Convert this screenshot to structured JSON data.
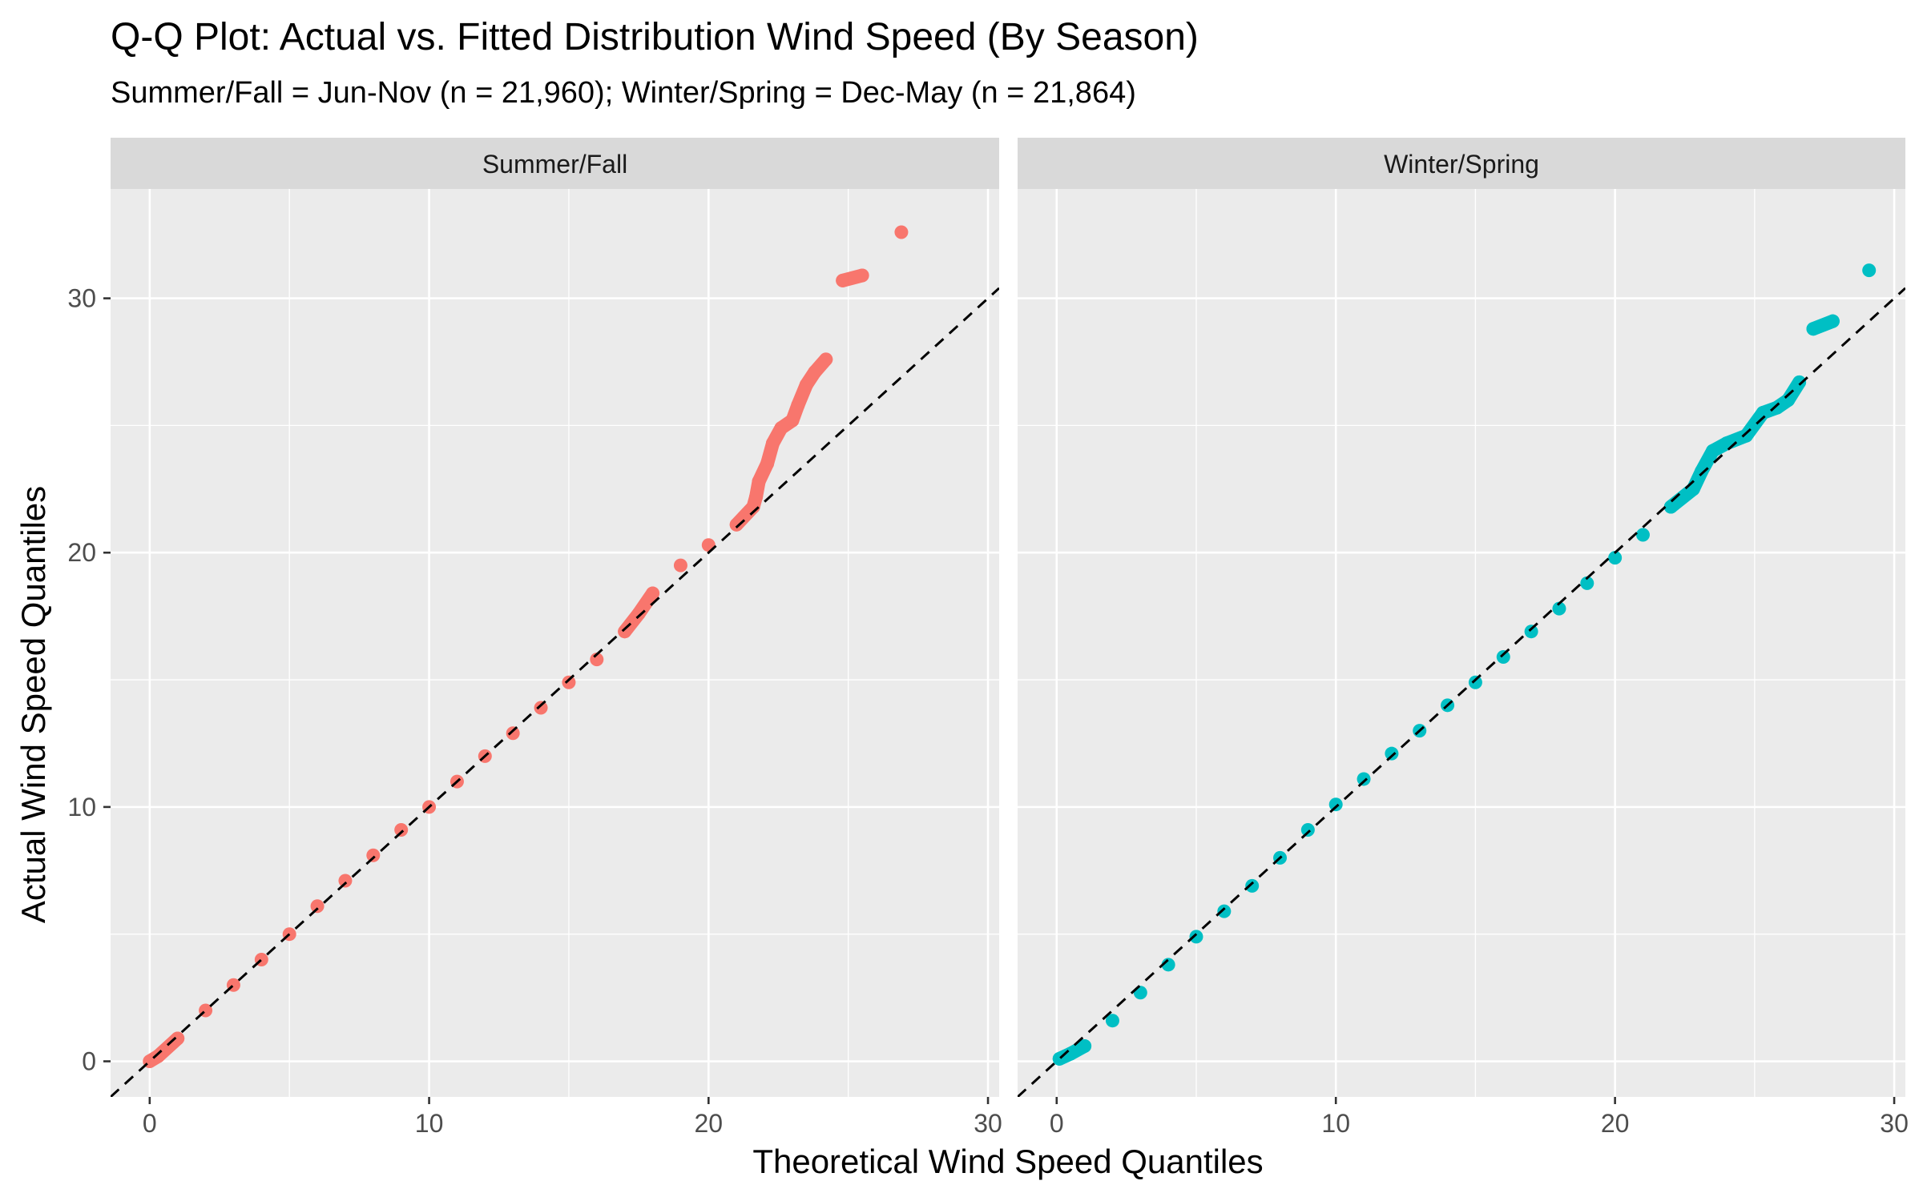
{
  "title": "Q-Q Plot: Actual vs. Fitted Distribution Wind Speed (By Season)",
  "subtitle": "Summer/Fall = Jun-Nov (n = 21,960); Winter/Spring = Dec-May (n = 21,864)",
  "chart_data": {
    "type": "scatter",
    "xlabel": "Theoretical Wind Speed Quantiles",
    "ylabel": "Actual Wind Speed Quantiles",
    "xlim": [
      -1.4,
      30.4
    ],
    "ylim": [
      -1.4,
      34.3
    ],
    "x_ticks": [
      0,
      10,
      20,
      30
    ],
    "y_ticks": [
      0,
      10,
      20,
      30
    ],
    "x_tick_labels": [
      "0",
      "10",
      "20",
      "30"
    ],
    "y_tick_labels": [
      "0",
      "10",
      "20",
      "30"
    ],
    "grid": true,
    "reference_line": {
      "slope": 1,
      "intercept": 0,
      "style": "dashed",
      "color": "#000000"
    },
    "panels": [
      {
        "name": "Summer/Fall",
        "color": "#F8766D",
        "points": [
          [
            0,
            0
          ],
          [
            0.3,
            0.2
          ],
          [
            1,
            0.9
          ],
          [
            2,
            2
          ],
          [
            3,
            3
          ],
          [
            4,
            4
          ],
          [
            5,
            5
          ],
          [
            6,
            6.1
          ],
          [
            7,
            7.1
          ],
          [
            8,
            8.1
          ],
          [
            9,
            9.1
          ],
          [
            10,
            10
          ],
          [
            11,
            11
          ],
          [
            12,
            12
          ],
          [
            13,
            12.9
          ],
          [
            14,
            13.9
          ],
          [
            15,
            14.9
          ],
          [
            16,
            15.8
          ],
          [
            17,
            16.9
          ],
          [
            17.5,
            17.6
          ],
          [
            18,
            18.4
          ],
          [
            19,
            19.5
          ],
          [
            20,
            20.3
          ],
          [
            21,
            21.1
          ],
          [
            21.6,
            21.8
          ],
          [
            21.7,
            22.2
          ],
          [
            21.8,
            22.8
          ],
          [
            22.1,
            23.5
          ],
          [
            22.3,
            24.3
          ],
          [
            22.6,
            24.9
          ],
          [
            23,
            25.2
          ],
          [
            23.2,
            25.8
          ],
          [
            23.5,
            26.6
          ],
          [
            23.8,
            27.1
          ],
          [
            24.2,
            27.6
          ],
          [
            24.8,
            30.7
          ],
          [
            25.5,
            30.9
          ],
          [
            26.9,
            32.6
          ]
        ]
      },
      {
        "name": "Winter/Spring",
        "color": "#00BFC4",
        "points": [
          [
            0.1,
            0.1
          ],
          [
            0.5,
            0.3
          ],
          [
            1,
            0.6
          ],
          [
            2,
            1.6
          ],
          [
            3,
            2.7
          ],
          [
            4,
            3.8
          ],
          [
            5,
            4.9
          ],
          [
            6,
            5.9
          ],
          [
            7,
            6.9
          ],
          [
            8,
            8
          ],
          [
            9,
            9.1
          ],
          [
            10,
            10.1
          ],
          [
            11,
            11.1
          ],
          [
            12,
            12.1
          ],
          [
            13,
            13
          ],
          [
            14,
            14
          ],
          [
            15,
            14.9
          ],
          [
            16,
            15.9
          ],
          [
            17,
            16.9
          ],
          [
            18,
            17.8
          ],
          [
            19,
            18.8
          ],
          [
            20,
            19.8
          ],
          [
            21,
            20.7
          ],
          [
            22,
            21.8
          ],
          [
            22.8,
            22.5
          ],
          [
            23.1,
            23.2
          ],
          [
            23.5,
            24
          ],
          [
            24,
            24.3
          ],
          [
            24.7,
            24.6
          ],
          [
            25.3,
            25.5
          ],
          [
            25.8,
            25.7
          ],
          [
            26.2,
            26
          ],
          [
            26.6,
            26.7
          ],
          [
            27.1,
            28.8
          ],
          [
            27.8,
            29.1
          ],
          [
            29.1,
            31.1
          ]
        ]
      }
    ]
  }
}
